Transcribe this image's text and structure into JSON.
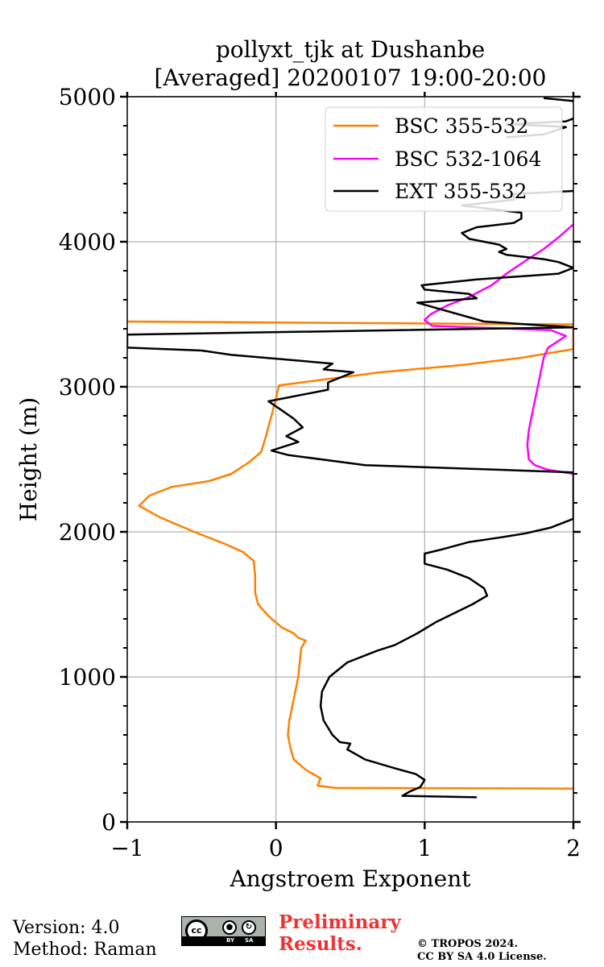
{
  "chart_data": {
    "type": "line",
    "title": "pollyxt_tjk at Dushanbe",
    "subtitle": "[Averaged] 20200107 19:00-20:00",
    "xlabel": "Angstroem Exponent",
    "ylabel": "Height (m)",
    "xlim": [
      -1,
      2
    ],
    "ylim": [
      0,
      5000
    ],
    "xticks": [
      -1,
      0,
      1,
      2
    ],
    "xtick_labels": [
      "−1",
      "0",
      "1",
      "2"
    ],
    "yticks": [
      0,
      1000,
      2000,
      3000,
      4000,
      5000
    ],
    "ytick_labels": [
      "0",
      "1000",
      "2000",
      "3000",
      "4000",
      "5000"
    ],
    "grid": true,
    "legend_position": "top-right",
    "series": [
      {
        "name": "BSC 355-532",
        "color": "#ff8000",
        "points": [
          [
            2.0,
            230
          ],
          [
            0.4,
            235
          ],
          [
            0.28,
            250
          ],
          [
            0.3,
            300
          ],
          [
            0.2,
            360
          ],
          [
            0.12,
            430
          ],
          [
            0.1,
            500
          ],
          [
            0.08,
            600
          ],
          [
            0.09,
            700
          ],
          [
            0.11,
            800
          ],
          [
            0.13,
            900
          ],
          [
            0.15,
            1000
          ],
          [
            0.16,
            1100
          ],
          [
            0.17,
            1200
          ],
          [
            0.2,
            1250
          ],
          [
            0.15,
            1270
          ],
          [
            0.12,
            1300
          ],
          [
            0.04,
            1340
          ],
          [
            -0.05,
            1420
          ],
          [
            -0.12,
            1500
          ],
          [
            -0.14,
            1580
          ],
          [
            -0.14,
            1700
          ],
          [
            -0.15,
            1800
          ],
          [
            -0.22,
            1860
          ],
          [
            -0.35,
            1920
          ],
          [
            -0.55,
            2000
          ],
          [
            -0.78,
            2100
          ],
          [
            -0.92,
            2180
          ],
          [
            -0.85,
            2250
          ],
          [
            -0.7,
            2310
          ],
          [
            -0.45,
            2350
          ],
          [
            -0.3,
            2400
          ],
          [
            -0.18,
            2480
          ],
          [
            -0.1,
            2550
          ],
          [
            -0.07,
            2650
          ],
          [
            -0.03,
            2800
          ],
          [
            0.0,
            2920
          ],
          [
            0.02,
            3010
          ],
          [
            0.7,
            3100
          ],
          [
            1.25,
            3150
          ],
          [
            1.65,
            3200
          ],
          [
            2.0,
            3260
          ],
          [
            2.0,
            3430
          ],
          [
            -1.0,
            3450
          ]
        ]
      },
      {
        "name": "BSC 532-1064",
        "color": "#ff00ff",
        "points": [
          [
            2.0,
            2400
          ],
          [
            1.82,
            2430
          ],
          [
            1.74,
            2460
          ],
          [
            1.7,
            2500
          ],
          [
            1.69,
            2600
          ],
          [
            1.7,
            2700
          ],
          [
            1.72,
            2800
          ],
          [
            1.74,
            2900
          ],
          [
            1.76,
            3000
          ],
          [
            1.78,
            3100
          ],
          [
            1.8,
            3200
          ],
          [
            1.83,
            3270
          ],
          [
            1.92,
            3330
          ],
          [
            1.95,
            3350
          ],
          [
            1.85,
            3390
          ],
          [
            1.05,
            3420
          ],
          [
            1.0,
            3460
          ],
          [
            1.04,
            3500
          ],
          [
            1.15,
            3560
          ],
          [
            1.3,
            3620
          ],
          [
            1.45,
            3700
          ],
          [
            1.55,
            3780
          ],
          [
            1.65,
            3850
          ],
          [
            1.8,
            3950
          ],
          [
            1.9,
            4030
          ],
          [
            2.0,
            4120
          ]
        ]
      },
      {
        "name": "EXT 355-532",
        "color": "#000000",
        "points": [
          [
            1.35,
            170
          ],
          [
            0.85,
            180
          ],
          [
            0.9,
            210
          ],
          [
            0.97,
            240
          ],
          [
            1.0,
            290
          ],
          [
            0.94,
            330
          ],
          [
            0.8,
            370
          ],
          [
            0.6,
            430
          ],
          [
            0.48,
            500
          ],
          [
            0.5,
            540
          ],
          [
            0.43,
            550
          ],
          [
            0.38,
            600
          ],
          [
            0.32,
            700
          ],
          [
            0.3,
            800
          ],
          [
            0.31,
            900
          ],
          [
            0.36,
            1000
          ],
          [
            0.48,
            1100
          ],
          [
            0.68,
            1180
          ],
          [
            0.8,
            1220
          ],
          [
            0.95,
            1300
          ],
          [
            1.08,
            1380
          ],
          [
            1.2,
            1440
          ],
          [
            1.32,
            1500
          ],
          [
            1.42,
            1560
          ],
          [
            1.4,
            1610
          ],
          [
            1.3,
            1680
          ],
          [
            1.15,
            1740
          ],
          [
            1.0,
            1780
          ],
          [
            1.0,
            1850
          ],
          [
            1.12,
            1880
          ],
          [
            1.3,
            1930
          ],
          [
            1.5,
            1960
          ],
          [
            1.68,
            1990
          ],
          [
            1.85,
            2030
          ],
          [
            2.0,
            2090
          ],
          [
            2.0,
            2410
          ],
          [
            0.6,
            2460
          ],
          [
            0.08,
            2530
          ],
          [
            -0.03,
            2560
          ],
          [
            0.15,
            2620
          ],
          [
            0.07,
            2660
          ],
          [
            0.18,
            2720
          ],
          [
            0.12,
            2780
          ],
          [
            0.05,
            2830
          ],
          [
            -0.05,
            2900
          ],
          [
            0.35,
            2980
          ],
          [
            0.35,
            3030
          ],
          [
            0.52,
            3100
          ],
          [
            0.32,
            3120
          ],
          [
            0.38,
            3160
          ],
          [
            -0.3,
            3220
          ],
          [
            -0.5,
            3250
          ],
          [
            -1.0,
            3270
          ],
          [
            -1.0,
            3360
          ],
          [
            2.0,
            3410
          ],
          [
            1.4,
            3450
          ],
          [
            0.95,
            3580
          ],
          [
            1.35,
            3610
          ],
          [
            1.3,
            3640
          ],
          [
            1.0,
            3670
          ],
          [
            0.98,
            3700
          ],
          [
            1.35,
            3740
          ],
          [
            1.9,
            3780
          ],
          [
            2.0,
            3820
          ],
          [
            1.9,
            3860
          ],
          [
            1.8,
            3880
          ],
          [
            1.55,
            3910
          ],
          [
            1.5,
            3930
          ],
          [
            1.55,
            3950
          ],
          [
            1.5,
            3980
          ],
          [
            1.3,
            4020
          ],
          [
            1.25,
            4060
          ],
          [
            1.35,
            4100
          ],
          [
            1.6,
            4130
          ],
          [
            1.65,
            4160
          ],
          [
            1.65,
            4200
          ],
          [
            1.25,
            4250
          ],
          [
            1.6,
            4290
          ],
          [
            1.6,
            4330
          ],
          [
            2.0,
            4350
          ]
        ]
      },
      {
        "name": "EXT 355-532 (upper)",
        "color": "#000000",
        "in_legend": false,
        "points": [
          [
            1.55,
            4720
          ],
          [
            1.8,
            4740
          ],
          [
            1.95,
            4790
          ],
          [
            1.8,
            4800
          ],
          [
            1.55,
            4810
          ],
          [
            1.95,
            4830
          ],
          [
            2.0,
            4850
          ]
        ]
      },
      {
        "name": "EXT 355-532 (top)",
        "color": "#000000",
        "in_legend": false,
        "points": [
          [
            1.8,
            4990
          ],
          [
            2.0,
            4970
          ]
        ]
      }
    ]
  },
  "footer": {
    "version": "Version: 4.0",
    "method": "Method: Raman",
    "preliminary_line1": "Preliminary",
    "preliminary_line2": "Results.",
    "copyright_line1": "© TROPOS 2024.",
    "copyright_line2": "CC BY SA 4.0 License."
  },
  "license_badge": {
    "cc": "cc",
    "by": "BY",
    "sa": "SA"
  }
}
